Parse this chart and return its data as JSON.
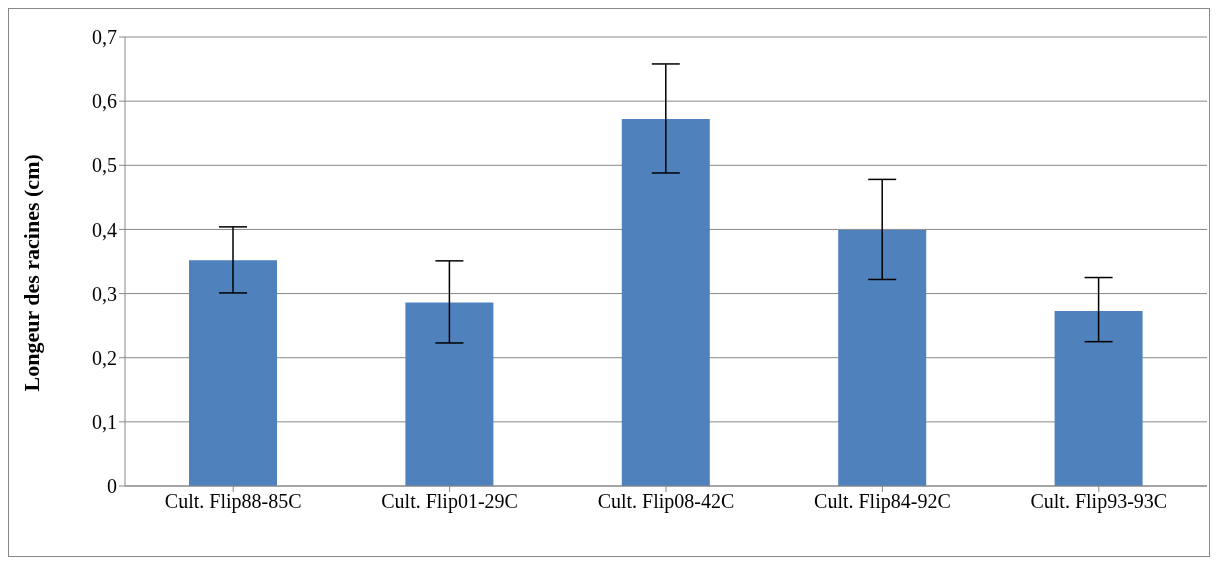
{
  "chart_data": {
    "type": "bar",
    "ylabel": "Longeur des racines (cm)",
    "categories": [
      "Cult. Flip88-85C",
      "Cult. Flip01-29C",
      "Cult. Flip08-42C",
      "Cult. Flip84-92C",
      "Cult. Flip93-93C"
    ],
    "values": [
      0.352,
      0.286,
      0.572,
      0.399,
      0.273
    ],
    "errors": [
      [
        0.301,
        0.404
      ],
      [
        0.223,
        0.351
      ],
      [
        0.488,
        0.658
      ],
      [
        0.322,
        0.478
      ],
      [
        0.225,
        0.325
      ]
    ],
    "color": "#4f81bd",
    "ylim": [
      0,
      0.7
    ],
    "yticks": [
      0,
      {
        "value": 0.1,
        "label": "0,1"
      },
      {
        "value": 0.2,
        "label": "0,2"
      },
      {
        "value": 0.3,
        "label": "0,3"
      },
      {
        "value": 0.4,
        "label": "0,4"
      },
      {
        "value": 0.5,
        "label": "0,5"
      },
      {
        "value": 0.6,
        "label": "0,6"
      },
      {
        "value": 0.7,
        "label": "0,7"
      }
    ],
    "grid": "y"
  }
}
